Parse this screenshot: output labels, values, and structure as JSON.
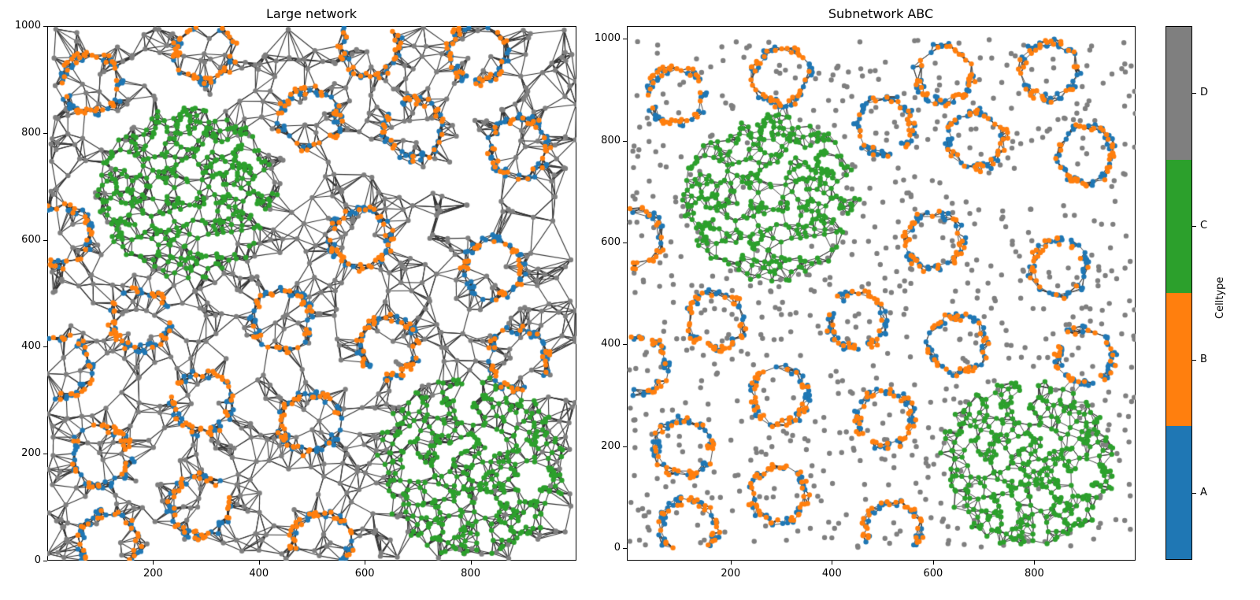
{
  "chart_data": [
    {
      "type": "scatter",
      "title": "Large network",
      "xlabel": "",
      "ylabel": "",
      "xlim": [
        0,
        1000
      ],
      "ylim": [
        0,
        1000
      ],
      "xticks": [
        200,
        400,
        600,
        800
      ],
      "yticks": [
        0,
        200,
        400,
        600,
        800,
        1000
      ],
      "edges": "delaunay-all",
      "background_celltype": "D",
      "rings": [
        {
          "x": 84,
          "y": 892
        },
        {
          "x": 298,
          "y": 951
        },
        {
          "x": 610,
          "y": 963
        },
        {
          "x": 815,
          "y": 951
        },
        {
          "x": 495,
          "y": 826
        },
        {
          "x": 693,
          "y": 807
        },
        {
          "x": 892,
          "y": 773
        },
        {
          "x": 592,
          "y": 602
        },
        {
          "x": 842,
          "y": 547
        },
        {
          "x": 176,
          "y": 451
        },
        {
          "x": 443,
          "y": 451
        },
        {
          "x": 644,
          "y": 399
        },
        {
          "x": 889,
          "y": 377
        },
        {
          "x": 292,
          "y": 295
        },
        {
          "x": 496,
          "y": 258
        },
        {
          "x": 102,
          "y": 194
        },
        {
          "x": 288,
          "y": 102
        },
        {
          "x": 518,
          "y": 35
        },
        {
          "x": 117,
          "y": 35
        },
        {
          "x": 28,
          "y": 608
        },
        {
          "x": 28,
          "y": 363
        }
      ],
      "ring_radius": 55,
      "blobs": [
        {
          "x": 265,
          "y": 688,
          "r": 170,
          "celltype": "C"
        },
        {
          "x": 800,
          "y": 177,
          "r": 180,
          "celltype": "C"
        }
      ]
    },
    {
      "type": "scatter",
      "title": "Subnetwork ABC",
      "xlabel": "",
      "ylabel": "",
      "xlim": [
        -5,
        1000
      ],
      "ylim": [
        -25,
        1025
      ],
      "xticks": [
        200,
        400,
        600,
        800
      ],
      "yticks": [
        0,
        200,
        400,
        600,
        800,
        1000
      ],
      "edges": "subnetwork-ABC-only",
      "background_celltype": "D",
      "rings": [
        {
          "x": 93,
          "y": 888
        },
        {
          "x": 300,
          "y": 927
        },
        {
          "x": 622,
          "y": 931
        },
        {
          "x": 829,
          "y": 938
        },
        {
          "x": 503,
          "y": 829
        },
        {
          "x": 686,
          "y": 801
        },
        {
          "x": 900,
          "y": 772
        },
        {
          "x": 602,
          "y": 602
        },
        {
          "x": 848,
          "y": 547
        },
        {
          "x": 172,
          "y": 446
        },
        {
          "x": 450,
          "y": 446
        },
        {
          "x": 648,
          "y": 400
        },
        {
          "x": 901,
          "y": 377
        },
        {
          "x": 297,
          "y": 299
        },
        {
          "x": 505,
          "y": 253
        },
        {
          "x": 107,
          "y": 198
        },
        {
          "x": 295,
          "y": 105
        },
        {
          "x": 520,
          "y": 36
        },
        {
          "x": 117,
          "y": 39
        },
        {
          "x": 10,
          "y": 610
        },
        {
          "x": 20,
          "y": 360
        }
      ],
      "ring_radius": 55,
      "blobs": [
        {
          "x": 280,
          "y": 688,
          "r": 175,
          "celltype": "C"
        },
        {
          "x": 786,
          "y": 167,
          "r": 175,
          "celltype": "C"
        }
      ]
    }
  ],
  "colorbar": {
    "title": "Celltype",
    "categories": [
      {
        "label": "A",
        "color": "#1f77b4"
      },
      {
        "label": "B",
        "color": "#ff7f0e"
      },
      {
        "label": "C",
        "color": "#2ca02c"
      },
      {
        "label": "D",
        "color": "#7f7f7f"
      }
    ]
  },
  "colors": {
    "A": "#1f77b4",
    "B": "#ff7f0e",
    "C": "#2ca02c",
    "D": "#7f7f7f",
    "edge": "#333333"
  },
  "titles": {
    "left": "Large network",
    "right": "Subnetwork ABC"
  }
}
